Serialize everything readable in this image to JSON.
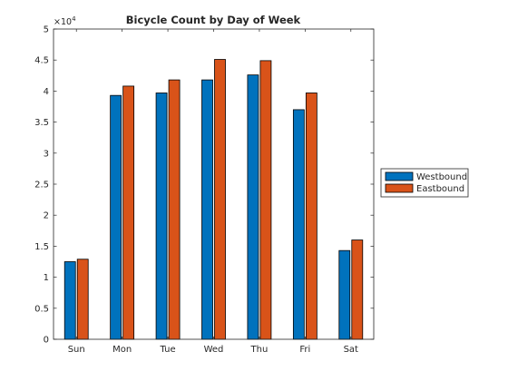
{
  "chart_data": {
    "type": "bar",
    "title": "Bicycle Count by Day of Week",
    "xlabel": "",
    "ylabel": "",
    "categories": [
      "Sun",
      "Mon",
      "Tue",
      "Wed",
      "Thu",
      "Fri",
      "Sat"
    ],
    "series": [
      {
        "name": "Westbound",
        "color": "#0072BD",
        "values": [
          12500,
          39300,
          39700,
          41800,
          42600,
          37000,
          14300
        ]
      },
      {
        "name": "Eastbound",
        "color": "#D95319",
        "values": [
          12900,
          40800,
          41800,
          45100,
          44900,
          39700,
          16000
        ]
      }
    ],
    "ylim": [
      0,
      50000
    ],
    "yticks": [
      0,
      5000,
      10000,
      15000,
      20000,
      25000,
      30000,
      35000,
      40000,
      45000,
      50000
    ],
    "ytick_labels": [
      "0",
      "0.5",
      "1",
      "1.5",
      "2",
      "2.5",
      "3",
      "3.5",
      "4",
      "4.5",
      "5"
    ],
    "y_exponent_label": "×10",
    "y_exponent_power": "4",
    "grid": false,
    "legend_position": "outside-right"
  }
}
